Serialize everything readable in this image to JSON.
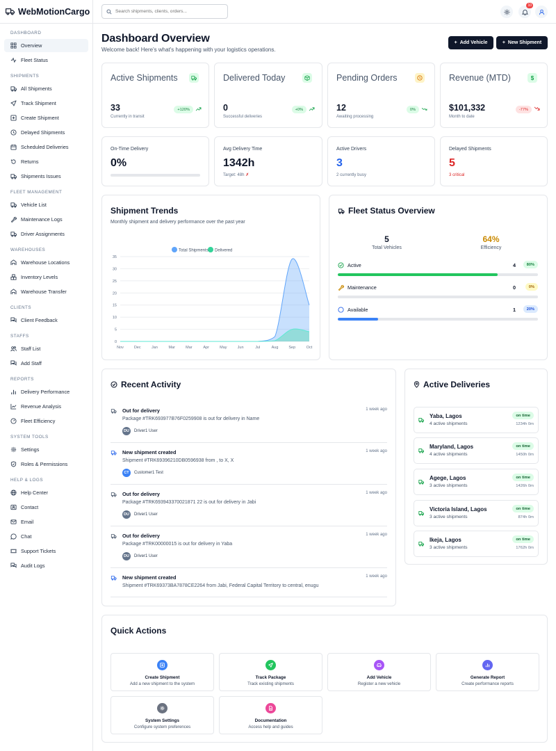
{
  "brand": {
    "name": "WebMotionCargo"
  },
  "sidebar": {
    "dashboard": {
      "title": "DASHBOARD",
      "items": [
        "Overview",
        "Fleet Status"
      ]
    },
    "shipments": {
      "title": "SHIPMENTS",
      "items": [
        "All Shipments",
        "Track Shipment",
        "Create Shipment",
        "Delayed Shipments",
        "Scheduled Deliveries",
        "Returns",
        "Shipments Issues"
      ]
    },
    "fleet": {
      "title": "FLEET MANAGEMENT",
      "items": [
        "Vehicle List",
        "Maintenance Logs",
        "Driver Assignments"
      ]
    },
    "warehouses": {
      "title": "WAREHOUSES",
      "items": [
        "Warehouse Locations",
        "Inventory Levels",
        "Warehouse Transfer"
      ]
    },
    "clients": {
      "title": "CLIENTS",
      "items": [
        "Client Feedback"
      ]
    },
    "staffs": {
      "title": "STAFFS",
      "items": [
        "Staff List",
        "Add Staff"
      ]
    },
    "reports": {
      "title": "REPORTS",
      "items": [
        "Delivery Performance",
        "Revenue Analysis",
        "Fleet Efficiency"
      ]
    },
    "system": {
      "title": "SYSTEM TOOLS",
      "items": [
        "Settings",
        "Roles & Permissions"
      ]
    },
    "help": {
      "title": "HELP & LOGS",
      "items": [
        "Help Center",
        "Contact",
        "Email",
        "Chat",
        "Support Tickets",
        "Audit Logs"
      ]
    }
  },
  "topbar": {
    "search_placeholder": "Search shipments, clients, orders...",
    "notif_count": "10"
  },
  "header": {
    "title": "Dashboard Overview",
    "subtitle": "Welcome back! Here's what's happening with your logistics operations.",
    "add_vehicle": "Add Vehicle",
    "new_shipment": "New Shipment"
  },
  "kpis": [
    {
      "title": "Active Shipments",
      "value": "33",
      "sub": "Currently in transit",
      "change": "+120%",
      "trend": "up"
    },
    {
      "title": "Delivered Today",
      "value": "0",
      "sub": "Successful deliveries",
      "change": "+0%",
      "trend": "up"
    },
    {
      "title": "Pending Orders",
      "value": "12",
      "sub": "Awaiting processing",
      "change": "0%",
      "trend": "flat"
    },
    {
      "title": "Revenue (MTD)",
      "value": "$101,332",
      "sub": "Month to date",
      "change": "-77%",
      "trend": "down"
    }
  ],
  "metrics": {
    "ontime": {
      "title": "On-Time Delivery",
      "value": "0%",
      "progress": 0
    },
    "avgtime": {
      "title": "Avg Delivery Time",
      "value": "1342h",
      "sub": "Target: 48h",
      "sub_mark": "✗"
    },
    "drivers": {
      "title": "Active Drivers",
      "value": "3",
      "sub": "2 currently busy"
    },
    "delayed": {
      "title": "Delayed Shipments",
      "value": "5",
      "sub": "3 critical"
    }
  },
  "trends": {
    "title": "Shipment Trends",
    "subtitle": "Monthly shipment and delivery performance over the past year"
  },
  "chart_data": {
    "type": "area",
    "title": "Shipment Trends",
    "categories": [
      "Nov",
      "Dec",
      "Jan",
      "Mar",
      "Mar",
      "Apr",
      "May",
      "Jun",
      "Jul",
      "Aug",
      "Sep",
      "Oct"
    ],
    "series": [
      {
        "name": "Total Shipments",
        "values": [
          0,
          0,
          0,
          0,
          0,
          0,
          0,
          0,
          0,
          2,
          34,
          15
        ],
        "color": "#60a5fa"
      },
      {
        "name": "Delivered",
        "values": [
          0,
          0,
          0,
          0,
          0,
          0,
          0,
          0,
          0,
          0.3,
          5,
          4
        ],
        "color": "#34d399"
      }
    ],
    "yticks": [
      "0",
      "5",
      "10",
      "15",
      "20",
      "25",
      "30",
      "35"
    ],
    "ylim": [
      0,
      35
    ],
    "legend": "top-center"
  },
  "fleet": {
    "title": "Fleet Status Overview",
    "total": "5",
    "total_label": "Total Vehicles",
    "efficiency": "64%",
    "efficiency_label": "Efficiency",
    "rows": [
      {
        "label": "Active",
        "count": "4",
        "pct": "80%",
        "fill": 0.8,
        "color": "#22c55e"
      },
      {
        "label": "Maintenance",
        "count": "0",
        "pct": "0%",
        "fill": 0,
        "color": "#eab308"
      },
      {
        "label": "Available",
        "count": "1",
        "pct": "20%",
        "fill": 0.2,
        "color": "#3b82f6"
      }
    ]
  },
  "activity": {
    "title": "Recent Activity",
    "items": [
      {
        "title": "Out for delivery",
        "desc": "Package #TRK693977B76F0259908 is out for delivery in Name",
        "time": "1 week ago",
        "user": "Driver1 User",
        "initials": "DU",
        "avatar": "#64748b"
      },
      {
        "title": "New shipment created",
        "desc": "Shipment #TRK69396210DB0596938 from , to X, X",
        "time": "1 week ago",
        "user": "Customer1 Test",
        "initials": "CT",
        "avatar": "#3b82f6"
      },
      {
        "title": "Out for delivery",
        "desc": "Package #TRK693943370021871 22 is out for delivery in Jabi",
        "time": "1 week ago",
        "user": "Driver1 User",
        "initials": "DU",
        "avatar": "#64748b"
      },
      {
        "title": "Out for delivery",
        "desc": "Package #TRK00000015 is out for delivery in Yaba",
        "time": "1 week ago",
        "user": "Driver1 User",
        "initials": "DU",
        "avatar": "#64748b"
      },
      {
        "title": "New shipment created",
        "desc": "Shipment #TRK69373BA7878CE2264 from Jabi, Federal Capital Territory to central, enugu",
        "time": "1 week ago"
      }
    ]
  },
  "deliveries": {
    "title": "Active Deliveries",
    "items": [
      {
        "name": "Yaba, Lagos",
        "sub": "4 active shipments",
        "status": "on time",
        "time": "1234h 0m"
      },
      {
        "name": "Maryland, Lagos",
        "sub": "4 active shipments",
        "status": "on time",
        "time": "1450h 0m"
      },
      {
        "name": "Agege, Lagos",
        "sub": "3 active shipments",
        "status": "on time",
        "time": "1426h 0m"
      },
      {
        "name": "Victoria Island, Lagos",
        "sub": "3 active shipments",
        "status": "on time",
        "time": "874h 0m"
      },
      {
        "name": "Ikeja, Lagos",
        "sub": "3 active shipments",
        "status": "on time",
        "time": "1762h 0m"
      }
    ]
  },
  "quick": {
    "title": "Quick Actions",
    "items": [
      {
        "title": "Create Shipment",
        "sub": "Add a new shipment to the system",
        "color": "#3b82f6"
      },
      {
        "title": "Track Package",
        "sub": "Track existing shipments",
        "color": "#22c55e"
      },
      {
        "title": "Add Vehicle",
        "sub": "Register a new vehicle",
        "color": "#a855f7"
      },
      {
        "title": "Generate Report",
        "sub": "Create performance reports",
        "color": "#6366f1"
      },
      {
        "title": "System Settings",
        "sub": "Configure system preferences",
        "color": "#6b7280"
      },
      {
        "title": "Documentation",
        "sub": "Access help and guides",
        "color": "#ec4899"
      }
    ]
  }
}
